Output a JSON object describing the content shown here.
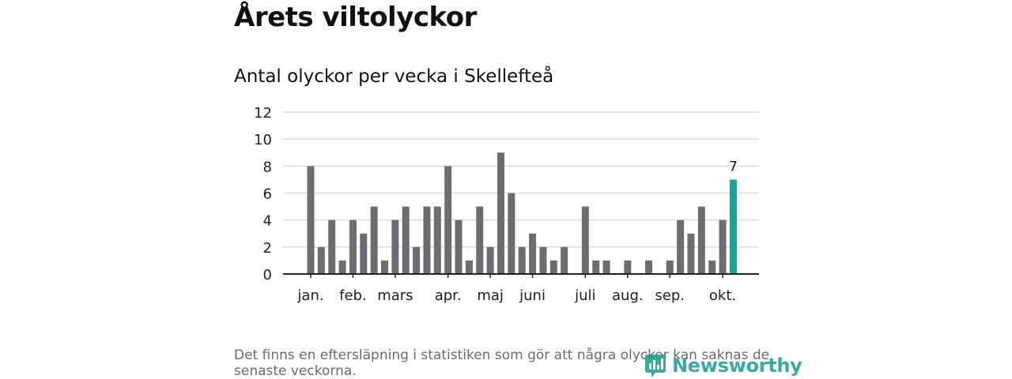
{
  "page_title": "Årets viltolyckor",
  "chart_data": {
    "type": "bar",
    "title": "Antal olyckor per vecka i Skellefteå",
    "xlabel": "",
    "ylabel": "",
    "ylim": [
      0,
      12
    ],
    "yticks": [
      0,
      2,
      4,
      6,
      8,
      10,
      12
    ],
    "grid": true,
    "weeks": [
      1,
      2,
      3,
      4,
      5,
      6,
      7,
      8,
      9,
      10,
      11,
      12,
      13,
      14,
      15,
      16,
      17,
      18,
      19,
      20,
      21,
      22,
      23,
      24,
      25,
      26,
      27,
      28,
      29,
      30,
      31,
      32,
      33,
      34,
      35,
      36,
      37,
      38,
      39,
      40,
      41
    ],
    "values": [
      8,
      2,
      4,
      1,
      4,
      3,
      5,
      1,
      4,
      5,
      2,
      5,
      5,
      8,
      4,
      1,
      5,
      2,
      9,
      6,
      2,
      3,
      2,
      1,
      2,
      0,
      5,
      1,
      1,
      0,
      1,
      0,
      1,
      0,
      1,
      4,
      3,
      5,
      1,
      4,
      7
    ],
    "month_ticks": [
      {
        "label": "jan.",
        "week": 1
      },
      {
        "label": "feb.",
        "week": 5
      },
      {
        "label": "mars",
        "week": 9
      },
      {
        "label": "apr.",
        "week": 14
      },
      {
        "label": "maj",
        "week": 18
      },
      {
        "label": "juni",
        "week": 22
      },
      {
        "label": "juli",
        "week": 27
      },
      {
        "label": "aug.",
        "week": 31
      },
      {
        "label": "sep.",
        "week": 35
      },
      {
        "label": "okt.",
        "week": 40
      }
    ],
    "highlight_week": 41,
    "highlight_label": "7",
    "bar_color": "#6d6c71",
    "highlight_color": "#12a69b",
    "grid_color": "#dcdcdc",
    "axis_color": "#222222"
  },
  "footnote": "Det finns en eftersläpning i statistiken som gör att några olyckor kan saknas de senaste veckorna.",
  "logo": {
    "text": "Newsworthy",
    "icon": "newsworthy-logo-icon",
    "color": "#1f9e94"
  }
}
